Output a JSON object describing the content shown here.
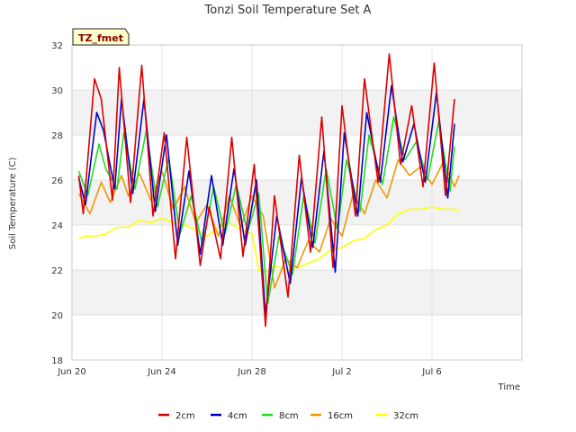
{
  "chart_data": {
    "type": "line",
    "title": "Tonzi Soil Temperature Set A",
    "xlabel": "Time",
    "ylabel": "Soil Temperature (C)",
    "site_tag": "TZ_fmet",
    "xlim": [
      0,
      20
    ],
    "ylim": [
      18,
      32
    ],
    "x_unit": "days since Jun 20",
    "yticks": [
      18,
      20,
      22,
      24,
      26,
      28,
      30,
      32
    ],
    "ytick_labels": [
      "18",
      "20",
      "22",
      "24",
      "26",
      "28",
      "30",
      "32"
    ],
    "xticks": [
      0,
      4,
      8,
      12,
      16
    ],
    "xtick_labels": [
      "Jun 20",
      "Jun 24",
      "Jun 28",
      "Jul 2",
      "Jul 6"
    ],
    "grid": true,
    "legend_position": "bottom",
    "colors": {
      "2cm": "#dd0000",
      "4cm": "#0000cc",
      "8cm": "#22dd22",
      "16cm": "#ee9900",
      "32cm": "#ffff00",
      "band": "#f2f2f2",
      "tag_fill": "#ffffcc"
    },
    "series": [
      {
        "name": "2cm",
        "x": [
          0.3,
          0.5,
          1.0,
          1.3,
          1.8,
          2.1,
          2.6,
          3.1,
          3.6,
          4.1,
          4.6,
          5.1,
          5.7,
          6.1,
          6.6,
          7.1,
          7.6,
          8.1,
          8.6,
          9.0,
          9.6,
          10.1,
          10.6,
          11.1,
          11.6,
          12.0,
          12.6,
          13.0,
          13.6,
          14.1,
          14.6,
          15.1,
          15.6,
          16.1,
          16.6,
          17.0
        ],
        "values": [
          26.2,
          24.5,
          30.5,
          29.6,
          25.1,
          31.0,
          25.0,
          31.1,
          24.4,
          28.1,
          22.5,
          27.9,
          22.2,
          24.8,
          22.5,
          27.9,
          22.6,
          26.7,
          19.5,
          25.3,
          20.8,
          27.1,
          22.8,
          28.8,
          22.1,
          29.3,
          24.4,
          30.5,
          25.9,
          31.6,
          26.7,
          29.3,
          25.7,
          31.2,
          25.3,
          29.6
        ]
      },
      {
        "name": "4cm",
        "x": [
          0.3,
          0.6,
          1.1,
          1.4,
          1.9,
          2.2,
          2.7,
          3.2,
          3.7,
          4.2,
          4.7,
          5.2,
          5.7,
          6.2,
          6.7,
          7.2,
          7.7,
          8.2,
          8.6,
          9.1,
          9.7,
          10.2,
          10.7,
          11.2,
          11.7,
          12.1,
          12.7,
          13.1,
          13.7,
          14.2,
          14.7,
          15.2,
          15.7,
          16.2,
          16.7,
          17.0
        ],
        "values": [
          26.1,
          24.9,
          29.0,
          28.2,
          25.6,
          29.6,
          25.4,
          29.6,
          24.6,
          28.0,
          23.1,
          26.4,
          22.7,
          26.2,
          23.1,
          26.5,
          23.1,
          26.0,
          20.0,
          24.4,
          21.4,
          26.1,
          23.0,
          27.3,
          21.9,
          28.1,
          24.4,
          29.0,
          25.9,
          30.2,
          26.8,
          28.5,
          25.9,
          29.9,
          25.2,
          28.5
        ]
      },
      {
        "name": "8cm",
        "x": [
          0.3,
          0.7,
          1.2,
          1.5,
          2.0,
          2.3,
          2.8,
          3.3,
          3.8,
          4.3,
          4.8,
          5.3,
          5.8,
          6.3,
          6.8,
          7.3,
          7.8,
          8.3,
          8.7,
          9.2,
          9.8,
          10.3,
          10.8,
          11.3,
          11.8,
          12.2,
          12.8,
          13.2,
          13.8,
          14.3,
          14.8,
          15.3,
          15.8,
          16.3,
          16.8,
          17.0
        ],
        "values": [
          26.4,
          25.3,
          27.6,
          26.5,
          25.6,
          28.1,
          25.6,
          28.2,
          24.8,
          27.0,
          23.6,
          25.3,
          23.1,
          25.7,
          23.6,
          25.8,
          23.7,
          25.4,
          20.5,
          23.5,
          21.8,
          25.3,
          23.2,
          26.5,
          23.8,
          26.9,
          24.6,
          28.0,
          25.8,
          28.8,
          26.9,
          27.7,
          26.0,
          28.6,
          25.5,
          27.5
        ]
      },
      {
        "name": "16cm",
        "x": [
          0.3,
          0.8,
          1.3,
          1.7,
          2.2,
          2.5,
          3.0,
          3.5,
          4.0,
          4.5,
          5.0,
          5.5,
          6.0,
          6.5,
          7.0,
          7.5,
          8.0,
          8.5,
          9.0,
          9.5,
          10.0,
          10.5,
          11.0,
          11.5,
          12.0,
          12.5,
          13.0,
          13.5,
          14.0,
          14.5,
          15.0,
          15.5,
          16.0,
          16.5,
          17.0,
          17.2
        ],
        "values": [
          25.4,
          24.5,
          25.9,
          25.0,
          26.2,
          25.3,
          26.3,
          25.1,
          26.4,
          24.7,
          25.7,
          24.1,
          24.9,
          23.5,
          25.3,
          23.9,
          25.3,
          24.4,
          21.2,
          22.5,
          22.1,
          23.3,
          22.8,
          24.3,
          23.5,
          25.4,
          24.5,
          26.0,
          25.2,
          26.9,
          26.2,
          26.6,
          25.8,
          26.8,
          25.7,
          26.2
        ]
      },
      {
        "name": "32cm",
        "x": [
          0.3,
          0.6,
          1.0,
          1.5,
          2.0,
          2.5,
          3.0,
          3.5,
          4.0,
          4.5,
          5.0,
          5.5,
          6.0,
          6.5,
          7.0,
          7.5,
          8.0,
          8.3,
          8.6,
          9.0,
          9.5,
          10.0,
          10.5,
          11.0,
          11.5,
          12.0,
          12.5,
          13.0,
          13.5,
          14.0,
          14.5,
          15.0,
          15.5,
          16.0,
          16.5,
          17.0,
          17.2
        ],
        "values": [
          23.4,
          23.5,
          23.5,
          23.6,
          23.9,
          23.9,
          24.2,
          24.1,
          24.3,
          24.1,
          24.0,
          23.8,
          23.5,
          23.9,
          24.1,
          23.8,
          23.6,
          22.0,
          21.9,
          22.2,
          22.0,
          22.1,
          22.3,
          22.5,
          22.9,
          23.0,
          23.3,
          23.4,
          23.8,
          24.0,
          24.5,
          24.7,
          24.7,
          24.8,
          24.7,
          24.7,
          24.6
        ]
      }
    ]
  }
}
